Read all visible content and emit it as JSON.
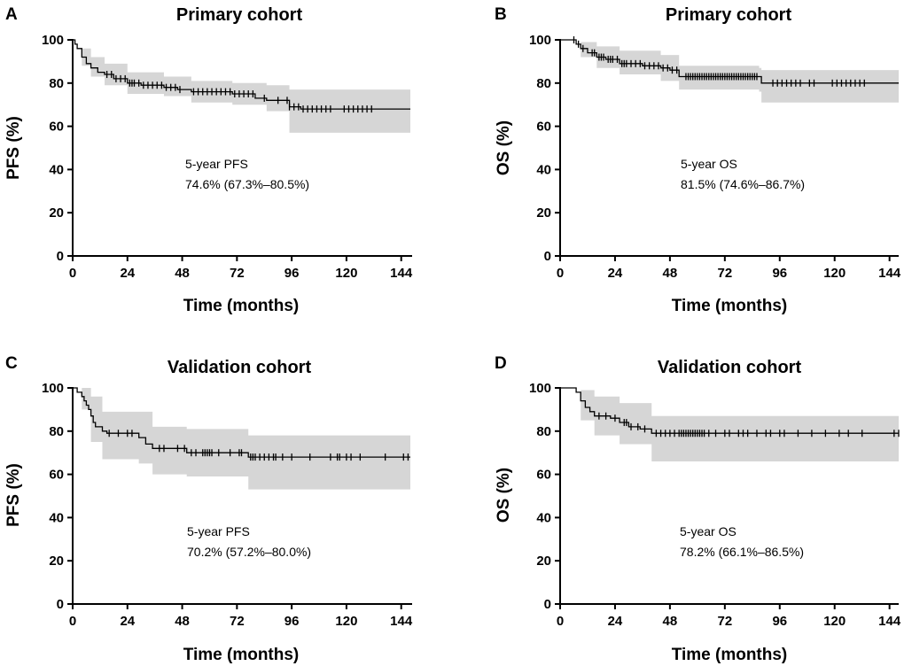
{
  "chart_data": [
    {
      "id": "A",
      "type": "line",
      "panel_label": "A",
      "title": "Primary cohort",
      "xlabel": "Time (months)",
      "ylabel": "PFS (%)",
      "xlim": [
        0,
        148
      ],
      "ylim": [
        0,
        100
      ],
      "xticks": [
        0,
        24,
        48,
        72,
        96,
        120,
        144
      ],
      "yticks": [
        0,
        20,
        40,
        60,
        80,
        100
      ],
      "annotation": [
        "5-year PFS",
        "74.6% (67.3%–80.5%)"
      ],
      "annotation_pos": [
        38,
        43
      ],
      "survival": [
        [
          0,
          100
        ],
        [
          1,
          98
        ],
        [
          2,
          96
        ],
        [
          4,
          92
        ],
        [
          6,
          89
        ],
        [
          8,
          87
        ],
        [
          11,
          85
        ],
        [
          14,
          84
        ],
        [
          18,
          82
        ],
        [
          24,
          80
        ],
        [
          30,
          79
        ],
        [
          40,
          78
        ],
        [
          46,
          77
        ],
        [
          52,
          76
        ],
        [
          70,
          75
        ],
        [
          80,
          73
        ],
        [
          85,
          72
        ],
        [
          95,
          69
        ],
        [
          100,
          68
        ],
        [
          148,
          68
        ]
      ],
      "ci_upper": [
        [
          0,
          100
        ],
        [
          4,
          96
        ],
        [
          8,
          92
        ],
        [
          14,
          89
        ],
        [
          24,
          85
        ],
        [
          40,
          83
        ],
        [
          52,
          81
        ],
        [
          70,
          80
        ],
        [
          85,
          79
        ],
        [
          95,
          77
        ],
        [
          148,
          77
        ]
      ],
      "ci_lower": [
        [
          0,
          100
        ],
        [
          4,
          88
        ],
        [
          8,
          83
        ],
        [
          14,
          79
        ],
        [
          24,
          75
        ],
        [
          40,
          74
        ],
        [
          52,
          71
        ],
        [
          70,
          70
        ],
        [
          85,
          67
        ],
        [
          95,
          57
        ],
        [
          148,
          57
        ]
      ],
      "censored": [
        15,
        17,
        19,
        21,
        23,
        25,
        26,
        27,
        29,
        31,
        33,
        35,
        37,
        39,
        41,
        43,
        45,
        47,
        53,
        55,
        57,
        59,
        61,
        63,
        65,
        67,
        69,
        71,
        73,
        75,
        77,
        79,
        84,
        90,
        94,
        95,
        97,
        99,
        101,
        103,
        105,
        107,
        109,
        111,
        113,
        119,
        121,
        123,
        125,
        127,
        129,
        131
      ]
    },
    {
      "id": "B",
      "type": "line",
      "panel_label": "B",
      "title": "Primary cohort",
      "xlabel": "Time (months)",
      "ylabel": "OS (%)",
      "xlim": [
        0,
        148
      ],
      "ylim": [
        0,
        100
      ],
      "xticks": [
        0,
        24,
        48,
        72,
        96,
        120,
        144
      ],
      "yticks": [
        0,
        20,
        40,
        60,
        80,
        100
      ],
      "annotation": [
        "5-year OS",
        "81.5% (74.6%–86.7%)"
      ],
      "annotation_pos": [
        47,
        43
      ],
      "survival": [
        [
          0,
          100
        ],
        [
          5,
          100
        ],
        [
          7,
          98
        ],
        [
          9,
          96
        ],
        [
          12,
          94
        ],
        [
          16,
          92
        ],
        [
          20,
          91
        ],
        [
          26,
          89
        ],
        [
          36,
          88
        ],
        [
          44,
          87
        ],
        [
          48,
          86
        ],
        [
          52,
          83
        ],
        [
          87,
          83
        ],
        [
          88,
          80
        ],
        [
          148,
          80
        ]
      ],
      "ci_upper": [
        [
          0,
          100
        ],
        [
          5,
          100
        ],
        [
          9,
          99
        ],
        [
          16,
          97
        ],
        [
          26,
          95
        ],
        [
          44,
          93
        ],
        [
          52,
          88
        ],
        [
          87,
          87
        ],
        [
          88,
          86
        ],
        [
          148,
          86
        ]
      ],
      "ci_lower": [
        [
          0,
          100
        ],
        [
          5,
          100
        ],
        [
          9,
          92
        ],
        [
          16,
          87
        ],
        [
          26,
          84
        ],
        [
          44,
          81
        ],
        [
          52,
          77
        ],
        [
          87,
          76
        ],
        [
          88,
          71
        ],
        [
          148,
          71
        ]
      ],
      "censored": [
        6,
        8,
        10,
        14,
        15,
        17,
        18,
        19,
        21,
        22,
        23,
        25,
        27,
        28,
        29,
        31,
        33,
        35,
        37,
        39,
        41,
        43,
        45,
        47,
        49,
        51,
        55,
        56,
        57,
        58,
        59,
        60,
        61,
        62,
        63,
        64,
        65,
        66,
        67,
        68,
        69,
        70,
        71,
        72,
        73,
        74,
        75,
        76,
        77,
        78,
        79,
        80,
        81,
        82,
        83,
        84,
        85,
        86,
        93,
        95,
        97,
        99,
        101,
        103,
        105,
        109,
        111,
        119,
        121,
        123,
        125,
        127,
        129,
        131,
        133
      ]
    },
    {
      "id": "C",
      "type": "line",
      "panel_label": "C",
      "title": "Validation cohort",
      "xlabel": "Time (months)",
      "ylabel": "PFS (%)",
      "xlim": [
        0,
        148
      ],
      "ylim": [
        0,
        100
      ],
      "xticks": [
        0,
        24,
        48,
        72,
        96,
        120,
        144
      ],
      "yticks": [
        0,
        20,
        40,
        60,
        80,
        100
      ],
      "annotation": [
        "5-year PFS",
        "70.2% (57.2%–80.0%)"
      ],
      "annotation_pos": [
        52,
        43
      ],
      "survival": [
        [
          0,
          100
        ],
        [
          2,
          98
        ],
        [
          4,
          96
        ],
        [
          5,
          94
        ],
        [
          6,
          92
        ],
        [
          7,
          90
        ],
        [
          8,
          87
        ],
        [
          9,
          84
        ],
        [
          10,
          82
        ],
        [
          13,
          80
        ],
        [
          15,
          79
        ],
        [
          27,
          79
        ],
        [
          29,
          77
        ],
        [
          32,
          74
        ],
        [
          35,
          72
        ],
        [
          48,
          72
        ],
        [
          50,
          70
        ],
        [
          75,
          70
        ],
        [
          77,
          68
        ],
        [
          148,
          68
        ]
      ],
      "ci_upper": [
        [
          0,
          100
        ],
        [
          4,
          100
        ],
        [
          8,
          96
        ],
        [
          13,
          89
        ],
        [
          29,
          89
        ],
        [
          35,
          82
        ],
        [
          50,
          81
        ],
        [
          75,
          81
        ],
        [
          77,
          78
        ],
        [
          148,
          78
        ]
      ],
      "ci_lower": [
        [
          0,
          100
        ],
        [
          4,
          90
        ],
        [
          8,
          75
        ],
        [
          13,
          67
        ],
        [
          29,
          65
        ],
        [
          35,
          60
        ],
        [
          50,
          59
        ],
        [
          75,
          59
        ],
        [
          77,
          53
        ],
        [
          148,
          53
        ]
      ],
      "censored": [
        16,
        20,
        24,
        26,
        38,
        40,
        46,
        49,
        52,
        54,
        57,
        58,
        59,
        60,
        61,
        64,
        69,
        73,
        74,
        78,
        79,
        80,
        82,
        84,
        86,
        88,
        89,
        92,
        96,
        104,
        113,
        116,
        117,
        120,
        122,
        126,
        137,
        145,
        147
      ]
    },
    {
      "id": "D",
      "type": "line",
      "panel_label": "D",
      "title": "Validation cohort",
      "xlabel": "Time (months)",
      "ylabel": "OS (%)",
      "xlim": [
        0,
        148
      ],
      "ylim": [
        0,
        100
      ],
      "xticks": [
        0,
        24,
        48,
        72,
        96,
        120,
        144
      ],
      "yticks": [
        0,
        20,
        40,
        60,
        80,
        100
      ],
      "annotation": [
        "5-year OS",
        "78.2% (66.1%–86.5%)"
      ],
      "annotation_pos": [
        52,
        43
      ],
      "survival": [
        [
          0,
          100
        ],
        [
          5,
          100
        ],
        [
          7,
          98
        ],
        [
          9,
          94
        ],
        [
          11,
          91
        ],
        [
          13,
          89
        ],
        [
          15,
          87
        ],
        [
          22,
          86
        ],
        [
          26,
          84
        ],
        [
          30,
          82
        ],
        [
          35,
          81
        ],
        [
          40,
          79
        ],
        [
          148,
          79
        ]
      ],
      "ci_upper": [
        [
          0,
          100
        ],
        [
          5,
          100
        ],
        [
          9,
          99
        ],
        [
          15,
          96
        ],
        [
          26,
          93
        ],
        [
          40,
          87
        ],
        [
          148,
          87
        ]
      ],
      "ci_lower": [
        [
          0,
          100
        ],
        [
          5,
          100
        ],
        [
          9,
          85
        ],
        [
          15,
          78
        ],
        [
          26,
          74
        ],
        [
          40,
          66
        ],
        [
          148,
          66
        ]
      ],
      "censored": [
        17,
        20,
        24,
        28,
        29,
        31,
        34,
        37,
        42,
        44,
        46,
        48,
        50,
        52,
        53,
        54,
        55,
        56,
        57,
        58,
        59,
        60,
        61,
        62,
        63,
        65,
        68,
        72,
        74,
        78,
        80,
        82,
        86,
        90,
        92,
        96,
        98,
        104,
        110,
        116,
        122,
        126,
        132,
        146,
        148
      ]
    }
  ]
}
